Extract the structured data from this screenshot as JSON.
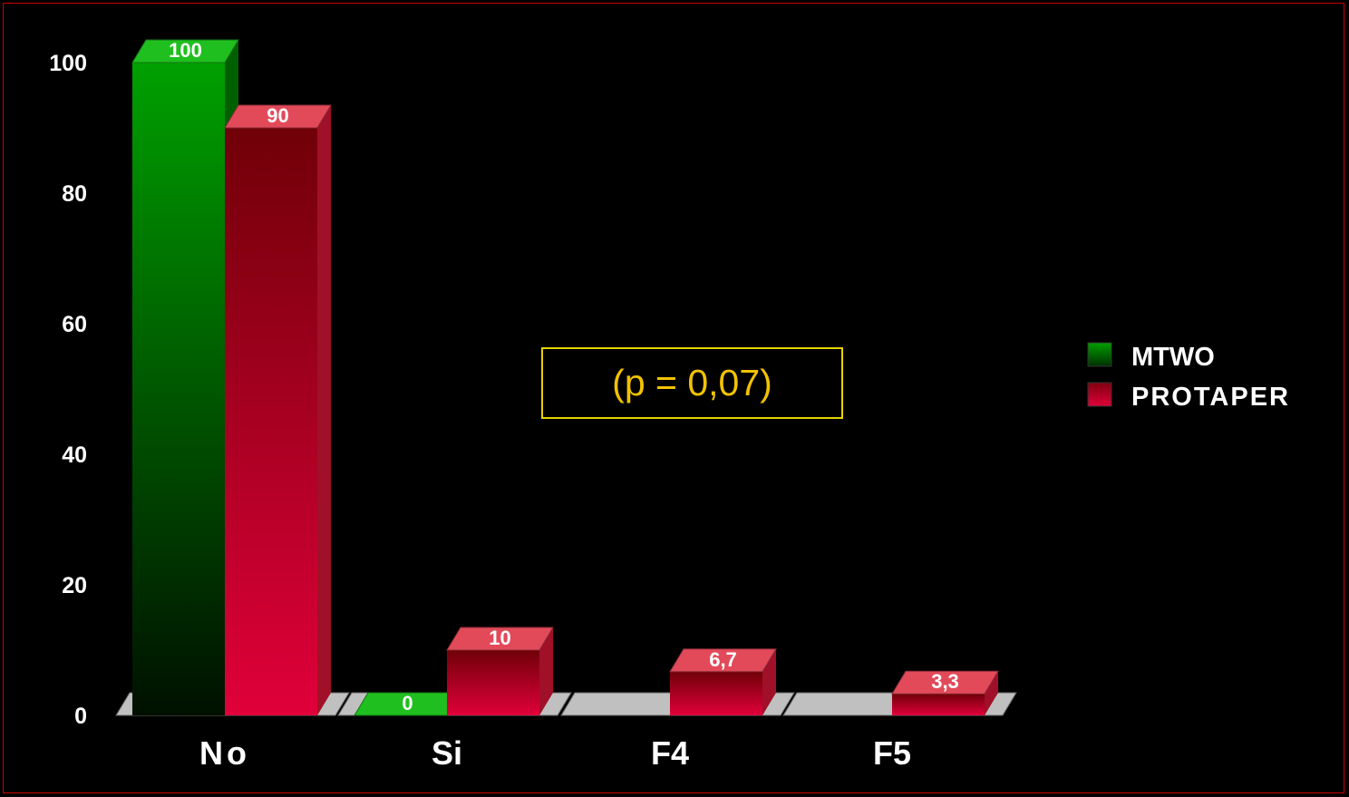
{
  "chart_data": {
    "type": "bar",
    "categories": [
      "No",
      "Si",
      "F4",
      "F5"
    ],
    "series": [
      {
        "name": "MTWO",
        "values": [
          100,
          0,
          null,
          null
        ],
        "labels": [
          "100",
          "0",
          "",
          ""
        ],
        "color_top": "#00a000",
        "color_bottom": "#001000"
      },
      {
        "name": "PROTAPER",
        "values": [
          90,
          10,
          6.7,
          3.3
        ],
        "labels": [
          "90",
          "10",
          "6,7",
          "3,3"
        ],
        "color_top": "#700008",
        "color_bottom": "#e0003a"
      }
    ],
    "yticks": [
      "0",
      "20",
      "40",
      "60",
      "80",
      "100"
    ],
    "ylim": [
      0,
      100
    ],
    "legend_position": "right",
    "annotation": "(p = 0,07)",
    "floor_color": "#c0c0c0"
  }
}
